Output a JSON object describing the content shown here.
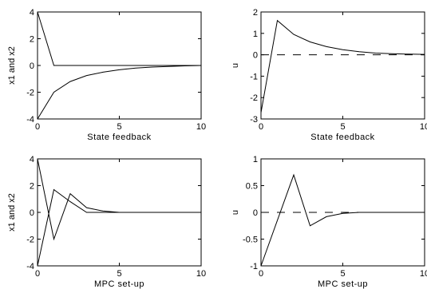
{
  "chart_data": [
    {
      "type": "line",
      "xlabel": "State feedback",
      "ylabel": "x1 and x2",
      "xlim": [
        0,
        10
      ],
      "ylim": [
        -4,
        4
      ],
      "xticks": [
        "0",
        "5",
        "10"
      ],
      "yticks": [
        "4",
        "2",
        "0",
        "-2",
        "-4"
      ],
      "series": [
        {
          "values": [
            [
              0,
              4
            ],
            [
              1,
              0
            ],
            [
              2,
              0
            ],
            [
              3,
              0
            ],
            [
              4,
              0
            ],
            [
              5,
              0
            ],
            [
              6,
              0
            ],
            [
              7,
              0
            ],
            [
              8,
              0
            ],
            [
              9,
              0
            ],
            [
              10,
              0
            ]
          ],
          "style": "solid"
        },
        {
          "values": [
            [
              0,
              -4
            ],
            [
              1,
              -2
            ],
            [
              2,
              -1.2
            ],
            [
              3,
              -0.75
            ],
            [
              4,
              -0.5
            ],
            [
              5,
              -0.32
            ],
            [
              6,
              -0.2
            ],
            [
              7,
              -0.12
            ],
            [
              8,
              -0.07
            ],
            [
              9,
              -0.03
            ],
            [
              10,
              0
            ]
          ],
          "style": "solid"
        }
      ]
    },
    {
      "type": "line",
      "xlabel": "State feedback",
      "ylabel": "u",
      "xlim": [
        0,
        10
      ],
      "ylim": [
        -3,
        2
      ],
      "xticks": [
        "0",
        "5",
        "10"
      ],
      "yticks": [
        "2",
        "1",
        "0",
        "-1",
        "-2",
        "-3"
      ],
      "series": [
        {
          "values": [
            [
              0,
              -2.7
            ],
            [
              1,
              1.6
            ],
            [
              2,
              0.95
            ],
            [
              3,
              0.6
            ],
            [
              4,
              0.38
            ],
            [
              5,
              0.24
            ],
            [
              6,
              0.14
            ],
            [
              7,
              0.08
            ],
            [
              8,
              0.05
            ],
            [
              9,
              0.03
            ],
            [
              10,
              0.02
            ]
          ],
          "style": "solid"
        },
        {
          "values": [
            [
              0,
              0
            ],
            [
              10,
              0
            ]
          ],
          "style": "dashed"
        }
      ]
    },
    {
      "type": "line",
      "xlabel": "MPC set-up",
      "ylabel": "x1 and x2",
      "xlim": [
        0,
        10
      ],
      "ylim": [
        -4,
        4
      ],
      "xticks": [
        "0",
        "5",
        "10"
      ],
      "yticks": [
        "4",
        "2",
        "0",
        "-2",
        "-4"
      ],
      "series": [
        {
          "values": [
            [
              0,
              4
            ],
            [
              1,
              -2
            ],
            [
              2,
              1.4
            ],
            [
              3,
              0.35
            ],
            [
              4,
              0.1
            ],
            [
              5,
              0
            ],
            [
              6,
              0
            ],
            [
              7,
              0
            ],
            [
              8,
              0
            ],
            [
              9,
              0
            ],
            [
              10,
              0
            ]
          ],
          "style": "solid"
        },
        {
          "values": [
            [
              0,
              -4
            ],
            [
              1,
              1.7
            ],
            [
              2,
              0.8
            ],
            [
              3,
              0
            ],
            [
              4,
              0
            ],
            [
              5,
              0
            ],
            [
              6,
              0
            ],
            [
              7,
              0
            ],
            [
              8,
              0
            ],
            [
              9,
              0
            ],
            [
              10,
              0
            ]
          ],
          "style": "solid"
        }
      ]
    },
    {
      "type": "line",
      "xlabel": "MPC set-up",
      "ylabel": "u",
      "xlim": [
        0,
        10
      ],
      "ylim": [
        -1,
        1
      ],
      "xticks": [
        "0",
        "5",
        "10"
      ],
      "yticks": [
        "1",
        "0.5",
        "0",
        "-0.5",
        "-1"
      ],
      "series": [
        {
          "values": [
            [
              0,
              -1
            ],
            [
              2,
              0.7
            ],
            [
              3,
              -0.25
            ],
            [
              4,
              -0.08
            ],
            [
              5,
              -0.02
            ],
            [
              6,
              0
            ],
            [
              7,
              0
            ],
            [
              8,
              0
            ],
            [
              9,
              0
            ],
            [
              10,
              0
            ]
          ],
          "style": "solid"
        },
        {
          "values": [
            [
              0,
              0
            ],
            [
              10,
              0
            ]
          ],
          "style": "dashed"
        }
      ]
    }
  ]
}
